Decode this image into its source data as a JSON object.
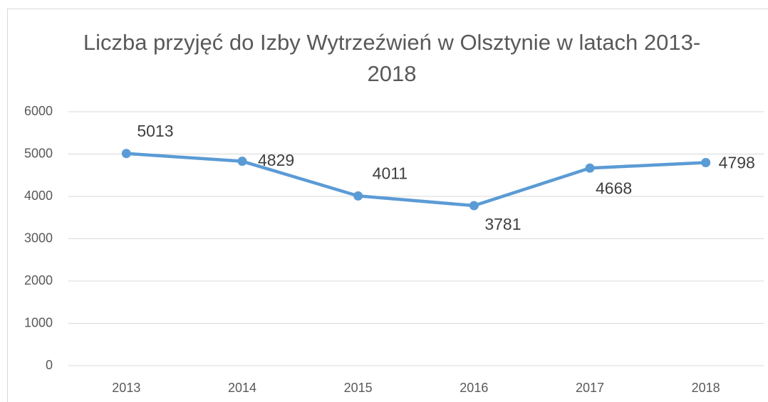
{
  "chart_data": {
    "type": "line",
    "title": "Liczba przyjęć do Izby Wytrzeźwień w Olsztynie w latach 2013-2018",
    "categories": [
      "2013",
      "2014",
      "2015",
      "2016",
      "2017",
      "2018"
    ],
    "series": [
      {
        "name": "Liczba przyjęć",
        "color": "#5b9bd5",
        "values": [
          5013,
          4829,
          4011,
          3781,
          4668,
          4798
        ]
      }
    ],
    "ylim": [
      0,
      6000
    ],
    "yticks": [
      0,
      1000,
      2000,
      3000,
      4000,
      5000,
      6000
    ],
    "grid": true
  }
}
